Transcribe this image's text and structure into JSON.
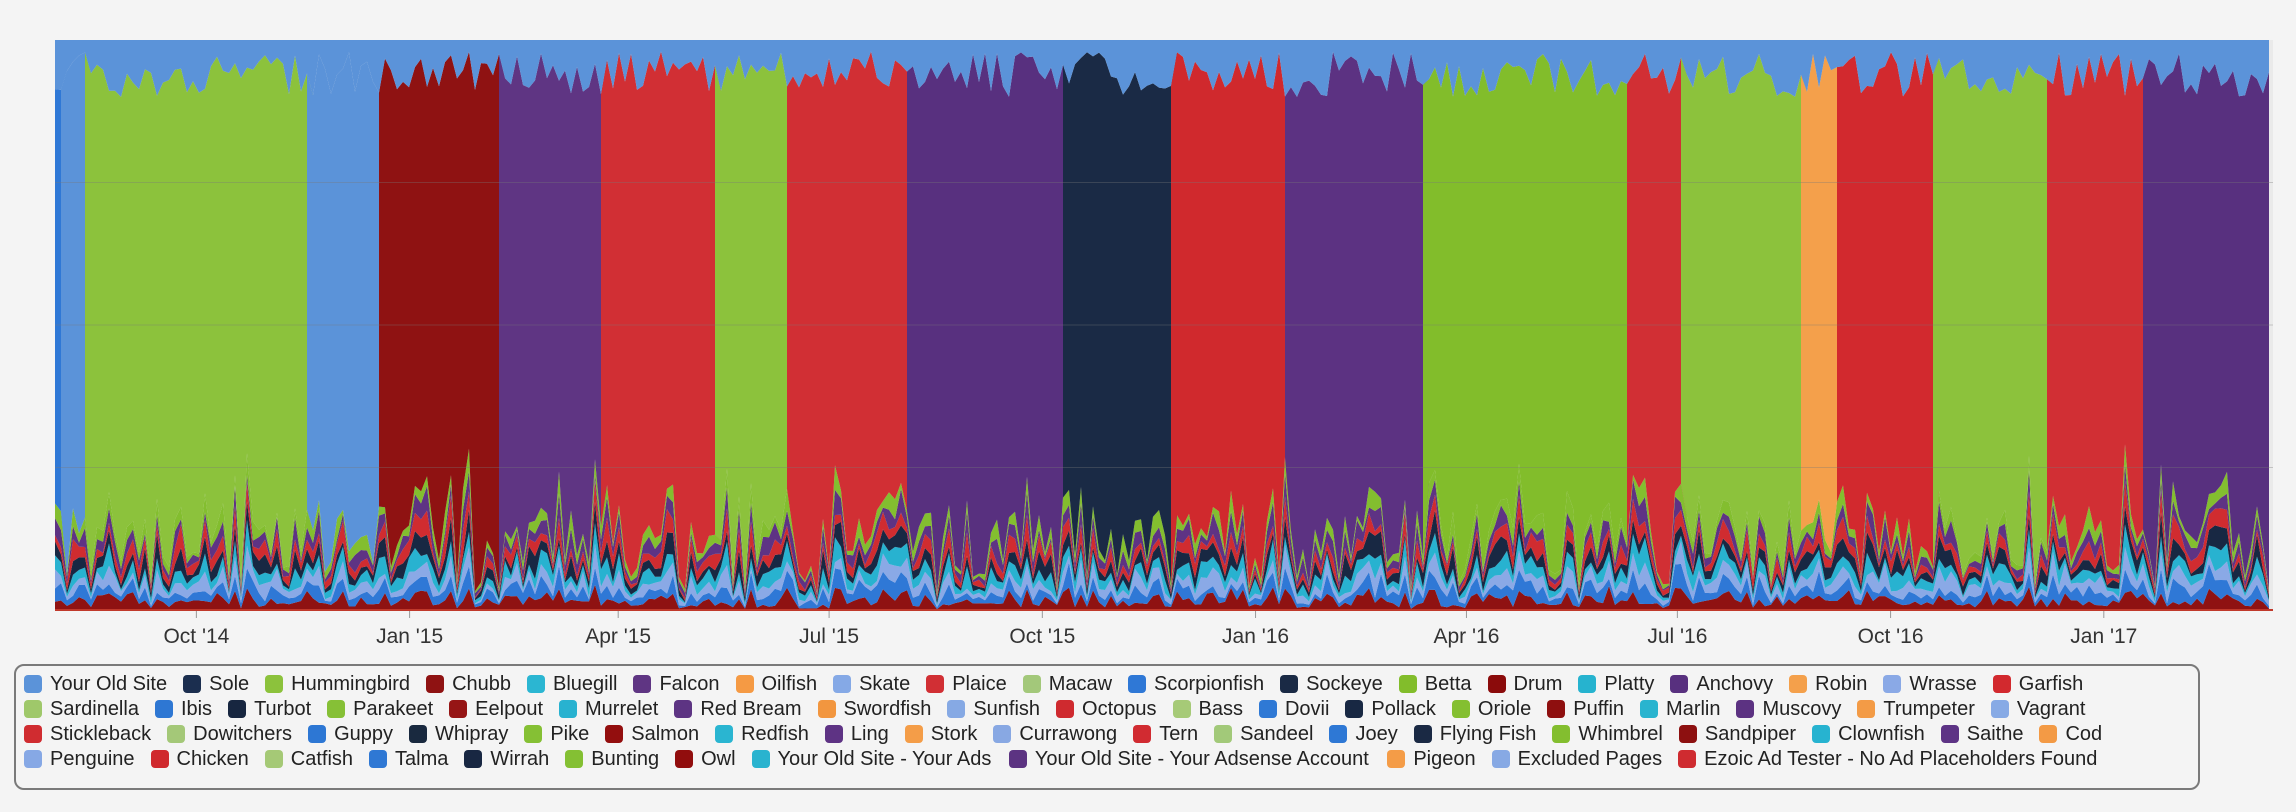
{
  "chart_data": {
    "type": "area",
    "stacked": true,
    "percent": true,
    "title": "",
    "xlabel": "",
    "ylabel": "",
    "ylim": [
      0,
      100
    ],
    "y_ticks": [
      "0",
      "25",
      "50",
      "75"
    ],
    "x_ticks": [
      "Oct '14",
      "Jan '15",
      "Apr '15",
      "Jul '15",
      "Oct '15",
      "Jan '16",
      "Apr '16",
      "Jul '16",
      "Oct '16",
      "Jan '17"
    ],
    "x_range": [
      "2014-08-01",
      "2017-03-15"
    ],
    "grid": true,
    "legend_position": "bottom",
    "dominant_segments": [
      {
        "start": "2014-08-01",
        "end": "2014-08-05",
        "series": "Scorpionfish"
      },
      {
        "start": "2014-08-05",
        "end": "2014-08-15",
        "series": "Your Old Site"
      },
      {
        "start": "2014-08-15",
        "end": "2014-11-20",
        "series": "Hummingbird"
      },
      {
        "start": "2014-11-20",
        "end": "2014-12-20",
        "series": "Your Old Site"
      },
      {
        "start": "2014-12-20",
        "end": "2015-01-08",
        "series": "Chubb"
      },
      {
        "start": "2015-01-08",
        "end": "2015-02-10",
        "series": "Chubb"
      },
      {
        "start": "2015-02-10",
        "end": "2015-03-25",
        "series": "Falcon"
      },
      {
        "start": "2015-03-25",
        "end": "2015-05-15",
        "series": "Plaice"
      },
      {
        "start": "2015-05-15",
        "end": "2015-06-15",
        "series": "Hummingbird"
      },
      {
        "start": "2015-06-15",
        "end": "2015-08-05",
        "series": "Plaice"
      },
      {
        "start": "2015-08-05",
        "end": "2015-10-10",
        "series": "Anchovy"
      },
      {
        "start": "2015-10-10",
        "end": "2015-11-28",
        "series": "Sockeye"
      },
      {
        "start": "2015-11-28",
        "end": "2016-01-15",
        "series": "Chicken"
      },
      {
        "start": "2016-01-15",
        "end": "2016-03-15",
        "series": "Muscovy"
      },
      {
        "start": "2016-03-15",
        "end": "2016-06-10",
        "series": "Betta"
      },
      {
        "start": "2016-06-10",
        "end": "2016-07-05",
        "series": "Plaice"
      },
      {
        "start": "2016-07-05",
        "end": "2016-08-25",
        "series": "Hummingbird"
      },
      {
        "start": "2016-08-25",
        "end": "2016-09-10",
        "series": "Robin"
      },
      {
        "start": "2016-09-10",
        "end": "2016-10-20",
        "series": "Garfish"
      },
      {
        "start": "2016-10-20",
        "end": "2016-12-10",
        "series": "Hummingbird"
      },
      {
        "start": "2016-12-10",
        "end": "2017-01-20",
        "series": "Plaice"
      },
      {
        "start": "2017-01-20",
        "end": "2017-03-15",
        "series": "Anchovy"
      }
    ],
    "series": [
      {
        "name": "Your Old Site",
        "color": "#5b93d9"
      },
      {
        "name": "Sole",
        "color": "#1b2e4f"
      },
      {
        "name": "Hummingbird",
        "color": "#8cc23c"
      },
      {
        "name": "Chubb",
        "color": "#8f1212"
      },
      {
        "name": "Bluegill",
        "color": "#2bb6d2"
      },
      {
        "name": "Falcon",
        "color": "#5f3583"
      },
      {
        "name": "Oilfish",
        "color": "#f59a44"
      },
      {
        "name": "Skate",
        "color": "#85a9e6"
      },
      {
        "name": "Plaice",
        "color": "#d12f34"
      },
      {
        "name": "Macaw",
        "color": "#a3c87a"
      },
      {
        "name": "Scorpionfish",
        "color": "#2f78d6"
      },
      {
        "name": "Sockeye",
        "color": "#1a2a45"
      },
      {
        "name": "Betta",
        "color": "#82bd2b"
      },
      {
        "name": "Drum",
        "color": "#8b0b0b"
      },
      {
        "name": "Platty",
        "color": "#26b3cf"
      },
      {
        "name": "Anchovy",
        "color": "#58307f"
      },
      {
        "name": "Robin",
        "color": "#f4a04b"
      },
      {
        "name": "Wrasse",
        "color": "#8aa9e6"
      },
      {
        "name": "Garfish",
        "color": "#d2292e"
      },
      {
        "name": "Sardinella",
        "color": "#9fc86a"
      },
      {
        "name": "Ibis",
        "color": "#2e77d3"
      },
      {
        "name": "Turbot",
        "color": "#172640"
      },
      {
        "name": "Parakeet",
        "color": "#86c036"
      },
      {
        "name": "Eelpout",
        "color": "#961515"
      },
      {
        "name": "Murrelet",
        "color": "#28b2d0"
      },
      {
        "name": "Red Bream",
        "color": "#5d3483"
      },
      {
        "name": "Swordfish",
        "color": "#f2963f"
      },
      {
        "name": "Sunfish",
        "color": "#86a9e4"
      },
      {
        "name": "Octopus",
        "color": "#cf2a2f"
      },
      {
        "name": "Bass",
        "color": "#a6ca77"
      },
      {
        "name": "Dovii",
        "color": "#2f79d5"
      },
      {
        "name": "Pollack",
        "color": "#182843"
      },
      {
        "name": "Oriole",
        "color": "#84bf30"
      },
      {
        "name": "Puffin",
        "color": "#8e0f0f"
      },
      {
        "name": "Marlin",
        "color": "#29b4cf"
      },
      {
        "name": "Muscovy",
        "color": "#5c3282"
      },
      {
        "name": "Trumpeter",
        "color": "#f39b46"
      },
      {
        "name": "Vagrant",
        "color": "#87aae5"
      },
      {
        "name": "Stickleback",
        "color": "#d02c30"
      },
      {
        "name": "Dowitchers",
        "color": "#a4c878"
      },
      {
        "name": "Guppy",
        "color": "#2d77d4"
      },
      {
        "name": "Whipray",
        "color": "#19293f"
      },
      {
        "name": "Pike",
        "color": "#85c034"
      },
      {
        "name": "Salmon",
        "color": "#930e0e"
      },
      {
        "name": "Redfish",
        "color": "#2ab5d1"
      },
      {
        "name": "Ling",
        "color": "#5e3384"
      },
      {
        "name": "Stork",
        "color": "#f49d48"
      },
      {
        "name": "Currawong",
        "color": "#88a8e3"
      },
      {
        "name": "Tern",
        "color": "#d12b31"
      },
      {
        "name": "Sandeel",
        "color": "#a2c979"
      },
      {
        "name": "Joey",
        "color": "#2e78d5"
      },
      {
        "name": "Flying Fish",
        "color": "#1a2944"
      },
      {
        "name": "Whimbrel",
        "color": "#83be2f"
      },
      {
        "name": "Sandpiper",
        "color": "#8d1010"
      },
      {
        "name": "Clownfish",
        "color": "#27b3d0"
      },
      {
        "name": "Saithe",
        "color": "#5d3385"
      },
      {
        "name": "Cod",
        "color": "#f39a45"
      },
      {
        "name": "Penguine",
        "color": "#86a8e5"
      },
      {
        "name": "Chicken",
        "color": "#d0292d"
      },
      {
        "name": "Catfish",
        "color": "#a5c976"
      },
      {
        "name": "Talma",
        "color": "#2f78d4"
      },
      {
        "name": "Wirrah",
        "color": "#182742"
      },
      {
        "name": "Bunting",
        "color": "#84c033"
      },
      {
        "name": "Owl",
        "color": "#910d0d"
      },
      {
        "name": "Your Old Site - Your Ads",
        "color": "#29b3cf"
      },
      {
        "name": "Your Old Site - Your Adsense Account",
        "color": "#5c3382"
      },
      {
        "name": "Pigeon",
        "color": "#f49c47"
      },
      {
        "name": "Excluded Pages",
        "color": "#87a9e4"
      },
      {
        "name": "Ezoic Ad Tester - No Ad Placeholders Found",
        "color": "#cf2b30"
      }
    ]
  }
}
